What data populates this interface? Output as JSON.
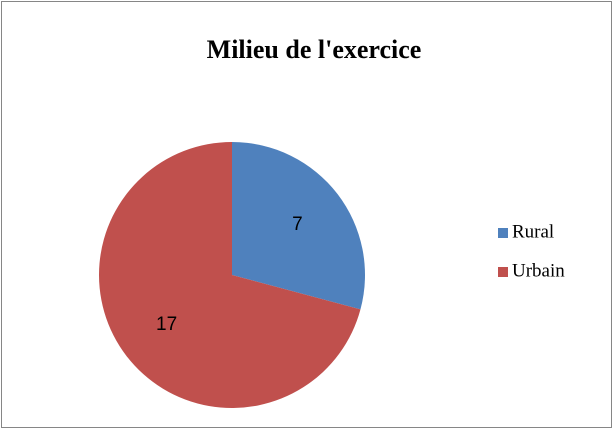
{
  "chart_data": {
    "type": "pie",
    "title": "Milieu de l'exercice",
    "categories": [
      "Rural",
      "Urbain"
    ],
    "values": [
      7,
      17
    ],
    "colors": [
      "#4f81bd",
      "#c0504d"
    ],
    "legend": "right"
  }
}
